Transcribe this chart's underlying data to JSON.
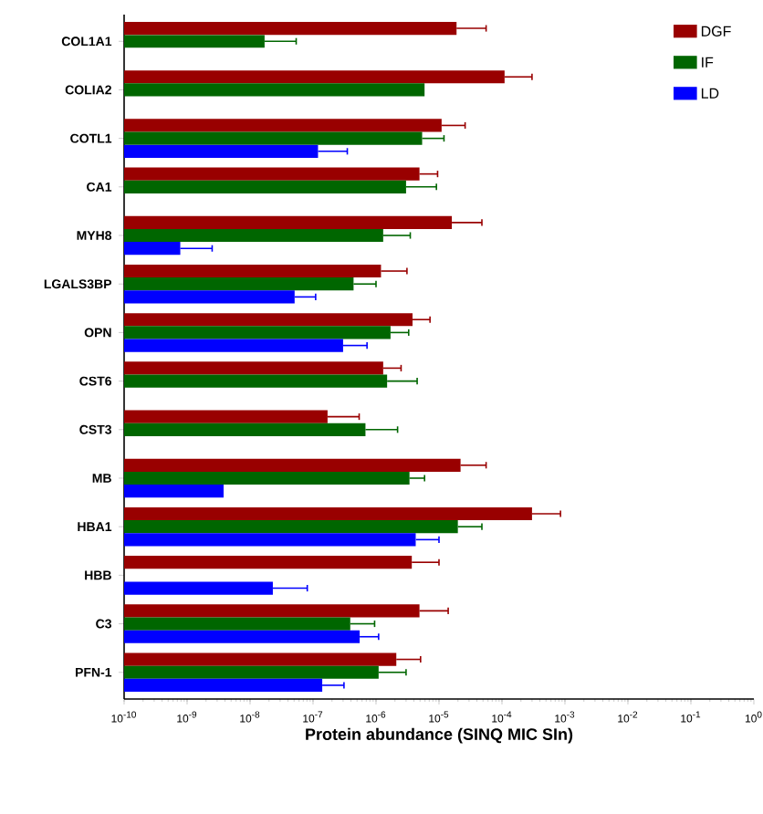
{
  "chart_data": {
    "type": "bar",
    "orientation": "horizontal",
    "log": "x",
    "xlabel": "Protein abundance (SINQ MIC SIn)",
    "categories": [
      "COL1A1",
      "COLIA2",
      "COTL1",
      "CA1",
      "MYH8",
      "LGALS3BP",
      "OPN",
      "CST6",
      "CST3",
      "MB",
      "HBA1",
      "HBB",
      "C3",
      "PFN-1"
    ],
    "series": [
      {
        "name": "DGF",
        "color": "#990000",
        "values": [
          1.9e-05,
          0.00011,
          1.1e-05,
          4.9e-06,
          1.6e-05,
          1.2e-06,
          3.8e-06,
          1.3e-06,
          1.7e-07,
          2.2e-05,
          0.0003,
          3.7e-06,
          4.9e-06,
          2.1e-06
        ],
        "errors": [
          [
            1.9e-05,
            5.6e-05
          ],
          [
            0.00011,
            0.0003
          ],
          [
            1.1e-05,
            2.6e-05
          ],
          [
            4.9e-06,
            9.5e-06
          ],
          [
            1.6e-05,
            4.8e-05
          ],
          [
            1.2e-06,
            3.1e-06
          ],
          [
            3.8e-06,
            7.2e-06
          ],
          [
            1.3e-06,
            2.5e-06
          ],
          [
            1.7e-07,
            5.4e-07
          ],
          [
            2.2e-05,
            5.6e-05
          ],
          [
            0.0003,
            0.00085
          ],
          [
            3.7e-06,
            1e-05
          ],
          [
            4.9e-06,
            1.4e-05
          ],
          [
            2.1e-06,
            5.1e-06
          ]
        ]
      },
      {
        "name": "IF",
        "color": "#006600",
        "values": [
          1.7e-08,
          5.9e-06,
          5.4e-06,
          3e-06,
          1.3e-06,
          4.4e-07,
          1.7e-06,
          1.5e-06,
          6.8e-07,
          3.4e-06,
          2e-05,
          null,
          3.9e-07,
          1.1e-06
        ],
        "errors": [
          [
            1.7e-08,
            5.4e-08
          ],
          null,
          [
            5.4e-06,
            1.2e-05
          ],
          [
            3e-06,
            9.1e-06
          ],
          [
            1.3e-06,
            3.5e-06
          ],
          [
            4.4e-07,
            1e-06
          ],
          [
            1.7e-06,
            3.3e-06
          ],
          [
            1.5e-06,
            4.5e-06
          ],
          [
            6.8e-07,
            2.2e-06
          ],
          [
            3.4e-06,
            5.9e-06
          ],
          [
            2e-05,
            4.8e-05
          ],
          null,
          [
            3.9e-07,
            9.5e-07
          ],
          [
            1.1e-06,
            3e-06
          ]
        ]
      },
      {
        "name": "LD",
        "color": "#0000ff",
        "values": [
          null,
          null,
          1.2e-07,
          null,
          7.8e-10,
          5.1e-08,
          3e-07,
          null,
          null,
          3.8e-09,
          4.3e-06,
          2.3e-08,
          5.5e-07,
          1.4e-07
        ],
        "errors": [
          null,
          null,
          [
            1.2e-07,
            3.5e-07
          ],
          null,
          [
            7.8e-10,
            2.5e-09
          ],
          [
            5.1e-08,
            1.1e-07
          ],
          [
            3e-07,
            7.2e-07
          ],
          null,
          null,
          null,
          [
            4.3e-06,
            1e-05
          ],
          [
            2.3e-08,
            8.1e-08
          ],
          [
            5.5e-07,
            1.1e-06
          ],
          [
            1.4e-07,
            3.1e-07
          ]
        ]
      }
    ],
    "xlim": [
      1e-10,
      1
    ],
    "xticks": [
      {
        "value": 1e-10,
        "label": "10$^{-10}$"
      },
      {
        "value": 1e-09,
        "label": "10$^{-9}$"
      },
      {
        "value": 1e-08,
        "label": "10$^{-8}$"
      },
      {
        "value": 1e-07,
        "label": "10$^{-7}$"
      },
      {
        "value": 1e-06,
        "label": "10$^{-6}$"
      },
      {
        "value": 1e-05,
        "label": "10$^{-5}$"
      },
      {
        "value": 0.0001,
        "label": "10$^{-4}$"
      },
      {
        "value": 0.001,
        "label": "10$^{-3}$"
      },
      {
        "value": 0.01,
        "label": "10$^{-2}$"
      },
      {
        "value": 0.1,
        "label": "10$^{-1}$"
      },
      {
        "value": 1,
        "label": "10$^{0}$"
      }
    ],
    "legend": "top right",
    "grid": false
  }
}
